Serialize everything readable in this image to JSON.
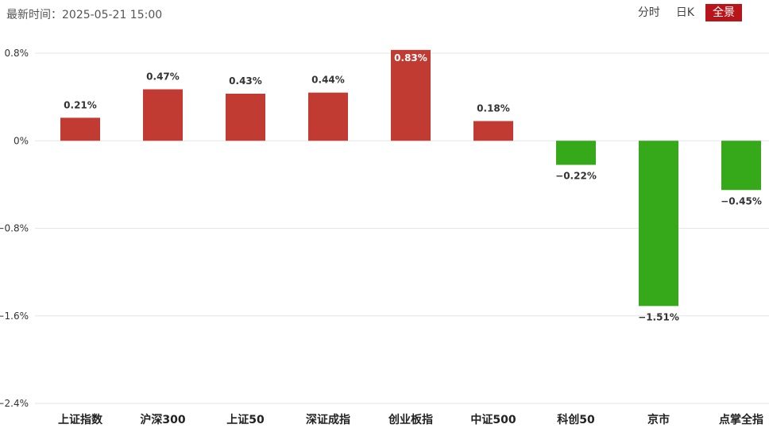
{
  "header": {
    "update_time": "最新时间：2025-05-21 15:00",
    "tabs": [
      {
        "label": "分时",
        "active": false
      },
      {
        "label": "日K",
        "active": false
      },
      {
        "label": "全景",
        "active": true
      }
    ]
  },
  "colors": {
    "up": "#c23b33",
    "down": "#35a91a",
    "active_tab": "#b8151b",
    "grid": "#e6e6e6"
  },
  "chart_data": {
    "type": "bar",
    "categories": [
      "上证指数",
      "沪深300",
      "上证50",
      "深证成指",
      "创业板指",
      "中证500",
      "科创50",
      "京市",
      "点掌全指"
    ],
    "values": [
      0.21,
      0.47,
      0.43,
      0.44,
      0.83,
      0.18,
      -0.22,
      -1.51,
      -0.45
    ],
    "value_labels": [
      "0.21%",
      "0.47%",
      "0.43%",
      "0.44%",
      "0.83%",
      "0.18%",
      "−0.22%",
      "−1.51%",
      "−0.45%"
    ],
    "y_ticks": [
      0.8,
      0,
      -0.8,
      -1.6,
      -2.4
    ],
    "y_tick_labels": [
      "0.8%",
      "0%",
      "−0.8%",
      "−1.6%",
      "−2.4%"
    ],
    "ylim": [
      -2.4,
      0.8
    ],
    "grid": true
  }
}
